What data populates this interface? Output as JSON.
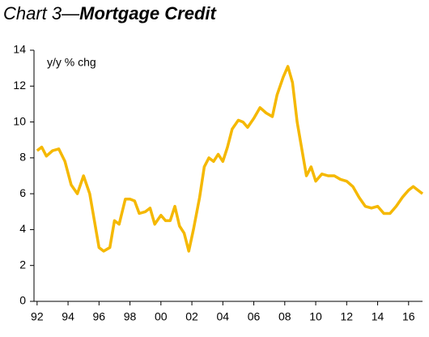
{
  "chart_data": {
    "type": "line",
    "title": [
      "Chart 3—",
      "Mortgage Credit"
    ],
    "y_label": "y/y % chg",
    "x": [
      1992.0,
      1992.3,
      1992.6,
      1993.0,
      1993.4,
      1993.8,
      1994.2,
      1994.6,
      1995.0,
      1995.4,
      1995.7,
      1996.0,
      1996.3,
      1996.7,
      1997.0,
      1997.3,
      1997.7,
      1998.0,
      1998.3,
      1998.6,
      1999.0,
      1999.3,
      1999.6,
      2000.0,
      2000.3,
      2000.6,
      2000.9,
      2001.2,
      2001.5,
      2001.8,
      2002.1,
      2002.5,
      2002.8,
      2003.1,
      2003.4,
      2003.7,
      2004.0,
      2004.3,
      2004.6,
      2005.0,
      2005.3,
      2005.6,
      2006.0,
      2006.4,
      2006.8,
      2007.2,
      2007.5,
      2007.9,
      2008.2,
      2008.5,
      2008.8,
      2009.1,
      2009.4,
      2009.7,
      2010.0,
      2010.4,
      2010.8,
      2011.2,
      2011.6,
      2012.0,
      2012.4,
      2012.8,
      2013.2,
      2013.6,
      2014.0,
      2014.4,
      2014.8,
      2015.2,
      2015.6,
      2016.0,
      2016.3,
      2016.6,
      2016.9
    ],
    "series": [
      {
        "name": "Mortgage credit",
        "color": "#f5b800",
        "values": [
          8.4,
          8.6,
          8.1,
          8.4,
          8.5,
          7.8,
          6.5,
          6.0,
          7.0,
          6.0,
          4.5,
          3.0,
          2.8,
          3.0,
          4.5,
          4.3,
          5.7,
          5.7,
          5.6,
          4.9,
          5.0,
          5.2,
          4.3,
          4.8,
          4.5,
          4.5,
          5.3,
          4.2,
          3.8,
          2.8,
          4.0,
          5.8,
          7.5,
          8.0,
          7.8,
          8.2,
          7.8,
          8.6,
          9.6,
          10.1,
          10.0,
          9.7,
          10.2,
          10.8,
          10.5,
          10.3,
          11.5,
          12.5,
          13.1,
          12.2,
          10.0,
          8.5,
          7.0,
          7.5,
          6.7,
          7.1,
          7.0,
          7.0,
          6.8,
          6.7,
          6.4,
          5.8,
          5.3,
          5.2,
          5.3,
          4.9,
          4.9,
          5.3,
          5.8,
          6.2,
          6.4,
          6.2,
          6.0
        ]
      }
    ],
    "xlim": [
      1991.8,
      2016.9
    ],
    "xticks": [
      {
        "value": 1992,
        "label": "92"
      },
      {
        "value": 1994,
        "label": "94"
      },
      {
        "value": 1996,
        "label": "96"
      },
      {
        "value": 1998,
        "label": "98"
      },
      {
        "value": 2000,
        "label": "00"
      },
      {
        "value": 2002,
        "label": "02"
      },
      {
        "value": 2004,
        "label": "04"
      },
      {
        "value": 2006,
        "label": "06"
      },
      {
        "value": 2008,
        "label": "08"
      },
      {
        "value": 2010,
        "label": "10"
      },
      {
        "value": 2012,
        "label": "12"
      },
      {
        "value": 2014,
        "label": "14"
      },
      {
        "value": 2016,
        "label": "16"
      }
    ],
    "ylim": [
      0,
      14
    ],
    "yticks": [
      0,
      2,
      4,
      6,
      8,
      10,
      12,
      14
    ],
    "grid": false
  }
}
